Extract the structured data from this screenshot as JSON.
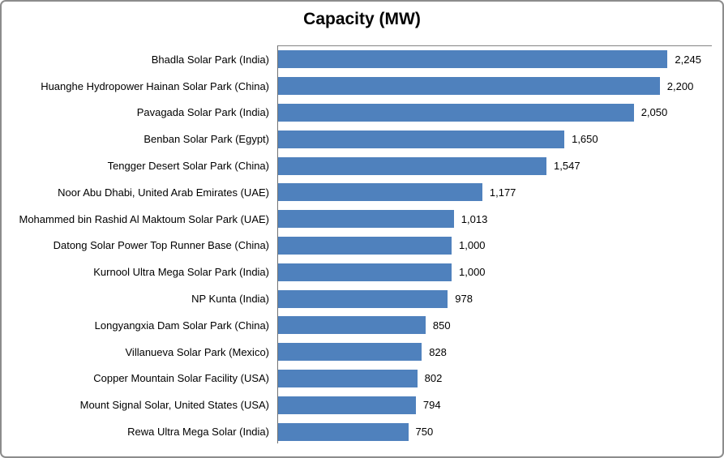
{
  "chart_data": {
    "type": "bar",
    "orientation": "horizontal",
    "title": "Capacity (MW)",
    "categories": [
      "Bhadla Solar Park (India)",
      "Huanghe Hydropower Hainan Solar Park (China)",
      "Pavagada Solar Park (India)",
      "Benban Solar Park (Egypt)",
      "Tengger Desert Solar Park (China)",
      "Noor Abu Dhabi, United Arab Emirates (UAE)",
      "Mohammed bin Rashid Al Maktoum Solar Park (UAE)",
      "Datong Solar Power Top Runner Base (China)",
      "Kurnool Ultra Mega Solar Park (India)",
      "NP Kunta (India)",
      "Longyangxia Dam Solar Park (China)",
      "Villanueva Solar Park (Mexico)",
      "Copper Mountain Solar Facility (USA)",
      "Mount Signal Solar, United States (USA)",
      "Rewa Ultra Mega Solar (India)"
    ],
    "values": [
      2245,
      2200,
      2050,
      1650,
      1547,
      1177,
      1013,
      1000,
      1000,
      978,
      850,
      828,
      802,
      794,
      750
    ],
    "value_labels": [
      "2,245",
      "2,200",
      "2,050",
      "1,650",
      "1,547",
      "1,177",
      "1,013",
      "1,000",
      "1,000",
      "978",
      "850",
      "828",
      "802",
      "794",
      "750"
    ],
    "xlabel": "",
    "ylabel": "",
    "xlim": [
      0,
      2500
    ],
    "grid": false,
    "legend": false,
    "data_labels": true,
    "bar_color": "#4F81BD",
    "axis_color": "#848484",
    "border_color": "#8c8c8c"
  }
}
